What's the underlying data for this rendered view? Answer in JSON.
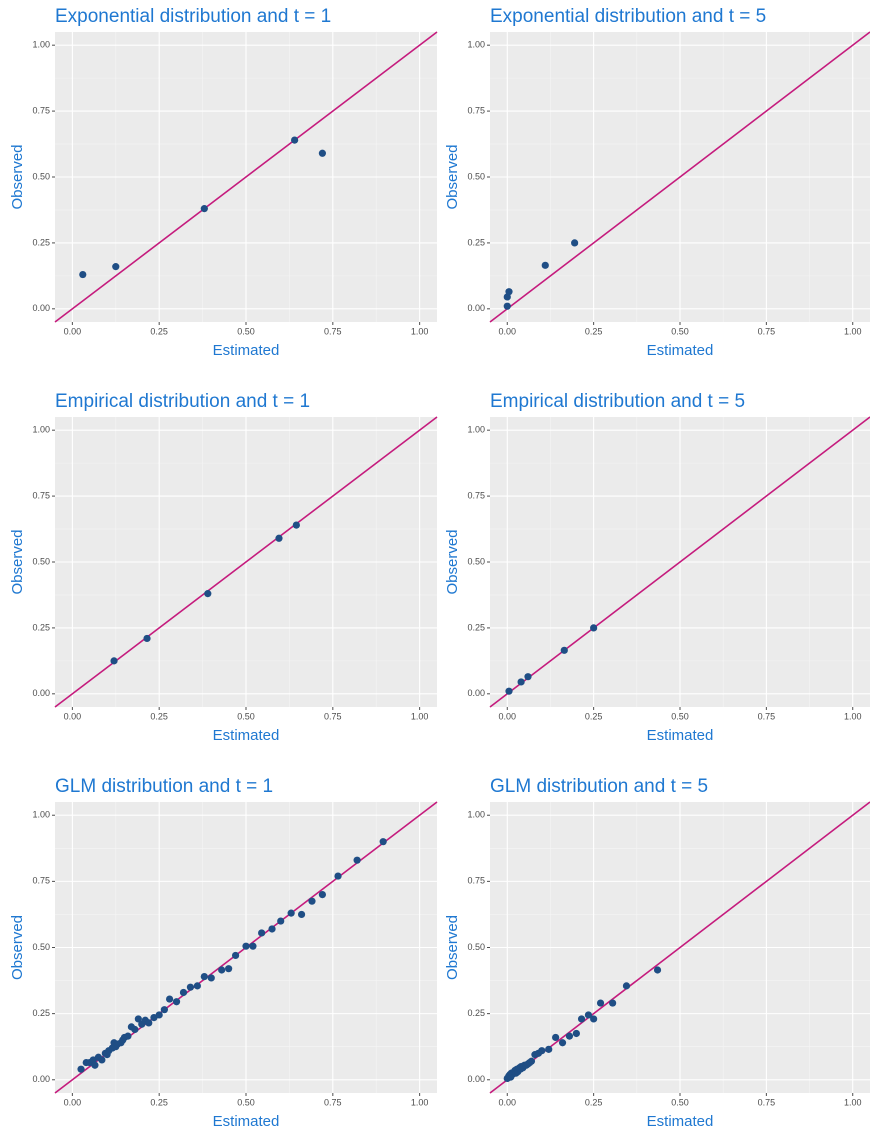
{
  "chart_data": [
    {
      "type": "scatter",
      "title": "Exponential distribution and t = 1",
      "x_label": "Estimated",
      "y_label": "Observed",
      "color": "#1f4e85",
      "line_color": "#c51b7d",
      "diagonal": true,
      "grid": true,
      "x": [
        0.03,
        0.125,
        0.38,
        0.64,
        0.72
      ],
      "values": [
        0.13,
        0.16,
        0.38,
        0.64,
        0.59
      ],
      "xlim": [
        -0.05,
        1.05
      ],
      "ylim": [
        -0.05,
        1.05
      ],
      "xticks": [
        {
          "value": 0,
          "label": "0.00"
        },
        {
          "value": 0.25,
          "label": "0.25"
        },
        {
          "value": 0.5,
          "label": "0.50"
        },
        {
          "value": 0.75,
          "label": "0.75"
        },
        {
          "value": 1,
          "label": "1.00"
        }
      ],
      "yticks": [
        {
          "value": 0,
          "label": "0.00"
        },
        {
          "value": 0.25,
          "label": "0.25"
        },
        {
          "value": 0.5,
          "label": "0.50"
        },
        {
          "value": 0.75,
          "label": "0.75"
        },
        {
          "value": 1,
          "label": "1.00"
        }
      ]
    },
    {
      "type": "scatter",
      "title": "Exponential distribution and t = 5",
      "x_label": "Estimated",
      "y_label": "Observed",
      "color": "#1f4e85",
      "line_color": "#c51b7d",
      "diagonal": true,
      "grid": true,
      "x": [
        0,
        0,
        0.005,
        0.11,
        0.195
      ],
      "values": [
        0.01,
        0.045,
        0.065,
        0.165,
        0.25
      ],
      "xlim": [
        -0.05,
        1.05
      ],
      "ylim": [
        -0.05,
        1.05
      ],
      "xticks": [
        {
          "value": 0,
          "label": "0.00"
        },
        {
          "value": 0.25,
          "label": "0.25"
        },
        {
          "value": 0.5,
          "label": "0.50"
        },
        {
          "value": 0.75,
          "label": "0.75"
        },
        {
          "value": 1,
          "label": "1.00"
        }
      ],
      "yticks": [
        {
          "value": 0,
          "label": "0.00"
        },
        {
          "value": 0.25,
          "label": "0.25"
        },
        {
          "value": 0.5,
          "label": "0.50"
        },
        {
          "value": 0.75,
          "label": "0.75"
        },
        {
          "value": 1,
          "label": "1.00"
        }
      ]
    },
    {
      "type": "scatter",
      "title": "Empirical distribution and t = 1",
      "x_label": "Estimated",
      "y_label": "Observed",
      "color": "#1f4e85",
      "line_color": "#c51b7d",
      "diagonal": true,
      "grid": true,
      "x": [
        0.12,
        0.215,
        0.39,
        0.595,
        0.645
      ],
      "values": [
        0.125,
        0.21,
        0.38,
        0.59,
        0.64
      ],
      "xlim": [
        -0.05,
        1.05
      ],
      "ylim": [
        -0.05,
        1.05
      ],
      "xticks": [
        {
          "value": 0,
          "label": "0.00"
        },
        {
          "value": 0.25,
          "label": "0.25"
        },
        {
          "value": 0.5,
          "label": "0.50"
        },
        {
          "value": 0.75,
          "label": "0.75"
        },
        {
          "value": 1,
          "label": "1.00"
        }
      ],
      "yticks": [
        {
          "value": 0,
          "label": "0.00"
        },
        {
          "value": 0.25,
          "label": "0.25"
        },
        {
          "value": 0.5,
          "label": "0.50"
        },
        {
          "value": 0.75,
          "label": "0.75"
        },
        {
          "value": 1,
          "label": "1.00"
        }
      ]
    },
    {
      "type": "scatter",
      "title": "Empirical distribution and t = 5",
      "x_label": "Estimated",
      "y_label": "Observed",
      "color": "#1f4e85",
      "line_color": "#c51b7d",
      "diagonal": true,
      "grid": true,
      "x": [
        0.005,
        0.04,
        0.06,
        0.165,
        0.25
      ],
      "values": [
        0.01,
        0.045,
        0.065,
        0.165,
        0.25
      ],
      "xlim": [
        -0.05,
        1.05
      ],
      "ylim": [
        -0.05,
        1.05
      ],
      "xticks": [
        {
          "value": 0,
          "label": "0.00"
        },
        {
          "value": 0.25,
          "label": "0.25"
        },
        {
          "value": 0.5,
          "label": "0.50"
        },
        {
          "value": 0.75,
          "label": "0.75"
        },
        {
          "value": 1,
          "label": "1.00"
        }
      ],
      "yticks": [
        {
          "value": 0,
          "label": "0.00"
        },
        {
          "value": 0.25,
          "label": "0.25"
        },
        {
          "value": 0.5,
          "label": "0.50"
        },
        {
          "value": 0.75,
          "label": "0.75"
        },
        {
          "value": 1,
          "label": "1.00"
        }
      ]
    },
    {
      "type": "scatter",
      "title": "GLM distribution and t = 1",
      "x_label": "Estimated",
      "y_label": "Observed",
      "color": "#1f4e85",
      "line_color": "#c51b7d",
      "diagonal": true,
      "grid": true,
      "x": [
        0.025,
        0.04,
        0.05,
        0.06,
        0.065,
        0.075,
        0.085,
        0.095,
        0.1,
        0.105,
        0.115,
        0.12,
        0.125,
        0.13,
        0.14,
        0.145,
        0.15,
        0.16,
        0.17,
        0.18,
        0.19,
        0.2,
        0.21,
        0.22,
        0.235,
        0.25,
        0.265,
        0.28,
        0.3,
        0.32,
        0.34,
        0.36,
        0.38,
        0.4,
        0.43,
        0.45,
        0.47,
        0.5,
        0.52,
        0.545,
        0.575,
        0.6,
        0.63,
        0.66,
        0.69,
        0.72,
        0.765,
        0.82,
        0.895
      ],
      "values": [
        0.04,
        0.065,
        0.065,
        0.075,
        0.055,
        0.085,
        0.075,
        0.1,
        0.095,
        0.11,
        0.12,
        0.14,
        0.125,
        0.135,
        0.14,
        0.15,
        0.16,
        0.165,
        0.2,
        0.19,
        0.23,
        0.21,
        0.225,
        0.215,
        0.235,
        0.245,
        0.265,
        0.305,
        0.295,
        0.33,
        0.35,
        0.355,
        0.39,
        0.385,
        0.415,
        0.42,
        0.47,
        0.505,
        0.505,
        0.555,
        0.57,
        0.6,
        0.63,
        0.625,
        0.675,
        0.7,
        0.77,
        0.83,
        0.9
      ],
      "xlim": [
        -0.05,
        1.05
      ],
      "ylim": [
        -0.05,
        1.05
      ],
      "xticks": [
        {
          "value": 0,
          "label": "0.00"
        },
        {
          "value": 0.25,
          "label": "0.25"
        },
        {
          "value": 0.5,
          "label": "0.50"
        },
        {
          "value": 0.75,
          "label": "0.75"
        },
        {
          "value": 1,
          "label": "1.00"
        }
      ],
      "yticks": [
        {
          "value": 0,
          "label": "0.00"
        },
        {
          "value": 0.25,
          "label": "0.25"
        },
        {
          "value": 0.5,
          "label": "0.50"
        },
        {
          "value": 0.75,
          "label": "0.75"
        },
        {
          "value": 1,
          "label": "1.00"
        }
      ]
    },
    {
      "type": "scatter",
      "title": "GLM distribution and t = 5",
      "x_label": "Estimated",
      "y_label": "Observed",
      "color": "#1f4e85",
      "line_color": "#c51b7d",
      "diagonal": true,
      "grid": true,
      "x": [
        0,
        0.003,
        0.005,
        0.008,
        0.01,
        0.012,
        0.015,
        0.02,
        0.022,
        0.025,
        0.028,
        0.03,
        0.035,
        0.038,
        0.04,
        0.045,
        0.05,
        0.055,
        0.06,
        0.065,
        0.07,
        0.08,
        0.09,
        0.1,
        0.12,
        0.14,
        0.16,
        0.18,
        0.2,
        0.215,
        0.235,
        0.25,
        0.27,
        0.305,
        0.345,
        0.435
      ],
      "values": [
        0.005,
        0.01,
        0.015,
        0.02,
        0.01,
        0.025,
        0.02,
        0.03,
        0.035,
        0.025,
        0.04,
        0.03,
        0.045,
        0.04,
        0.05,
        0.045,
        0.055,
        0.055,
        0.06,
        0.065,
        0.07,
        0.095,
        0.1,
        0.11,
        0.115,
        0.16,
        0.14,
        0.165,
        0.175,
        0.23,
        0.245,
        0.23,
        0.29,
        0.29,
        0.355,
        0.415
      ],
      "xlim": [
        -0.05,
        1.05
      ],
      "ylim": [
        -0.05,
        1.05
      ],
      "xticks": [
        {
          "value": 0,
          "label": "0.00"
        },
        {
          "value": 0.25,
          "label": "0.25"
        },
        {
          "value": 0.5,
          "label": "0.50"
        },
        {
          "value": 0.75,
          "label": "0.75"
        },
        {
          "value": 1,
          "label": "1.00"
        }
      ],
      "yticks": [
        {
          "value": 0,
          "label": "0.00"
        },
        {
          "value": 0.25,
          "label": "0.25"
        },
        {
          "value": 0.5,
          "label": "0.50"
        },
        {
          "value": 0.75,
          "label": "0.75"
        },
        {
          "value": 1,
          "label": "1.00"
        }
      ]
    }
  ]
}
